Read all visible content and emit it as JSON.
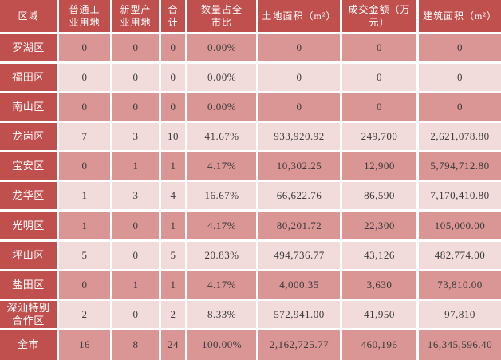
{
  "colors": {
    "header_bg": "#C0504D",
    "header_text": "#FFFFFF",
    "row_dark": "#D99694",
    "row_light": "#F2DCDB",
    "grid_border": "#FFFFFF",
    "data_text": "#3A3A3A"
  },
  "table": {
    "columns": [
      "区域",
      "普通工\n业用地",
      "新型产\n业用地",
      "合\n计",
      "数量占全\n市比",
      "土地面积（m²）",
      "成交金额（万\n元）",
      "建筑面积（m²）"
    ],
    "rows": [
      {
        "shade": "row_dark",
        "cells": [
          "罗湖区",
          "0",
          "0",
          "0",
          "0.00%",
          "0",
          "0",
          "0"
        ]
      },
      {
        "shade": "row_light",
        "cells": [
          "福田区",
          "0",
          "0",
          "0",
          "0.00%",
          "0",
          "0",
          "0"
        ]
      },
      {
        "shade": "row_dark",
        "cells": [
          "南山区",
          "0",
          "0",
          "0",
          "0.00%",
          "0",
          "0",
          "0"
        ]
      },
      {
        "shade": "row_light",
        "cells": [
          "龙岗区",
          "7",
          "3",
          "10",
          "41.67%",
          "933,920.92",
          "249,700",
          "2,621,078.80"
        ]
      },
      {
        "shade": "row_dark",
        "cells": [
          "宝安区",
          "0",
          "1",
          "1",
          "4.17%",
          "10,302.25",
          "12,900",
          "5,794,712.80"
        ]
      },
      {
        "shade": "row_light",
        "cells": [
          "龙华区",
          "1",
          "3",
          "4",
          "16.67%",
          "66,622.76",
          "86,590",
          "7,170,410.80"
        ]
      },
      {
        "shade": "row_dark",
        "cells": [
          "光明区",
          "1",
          "0",
          "1",
          "4.17%",
          "80,201.72",
          "22,300",
          "105,000.00"
        ]
      },
      {
        "shade": "row_light",
        "cells": [
          "坪山区",
          "5",
          "0",
          "5",
          "20.83%",
          "494,736.77",
          "43,126",
          "482,774.00"
        ]
      },
      {
        "shade": "row_dark",
        "cells": [
          "盐田区",
          "0",
          "1",
          "1",
          "4.17%",
          "4,000.35",
          "3,630",
          "73,810.00"
        ]
      },
      {
        "shade": "row_light",
        "cells": [
          "深汕特别\n合作区",
          "2",
          "0",
          "2",
          "8.33%",
          "572,941.00",
          "41,950",
          "97,810"
        ]
      },
      {
        "shade": "row_dark",
        "cells": [
          "全市",
          "16",
          "8",
          "24",
          "100.00%",
          "2,162,725.77",
          "460,196",
          "16,345,596.40"
        ]
      }
    ]
  }
}
